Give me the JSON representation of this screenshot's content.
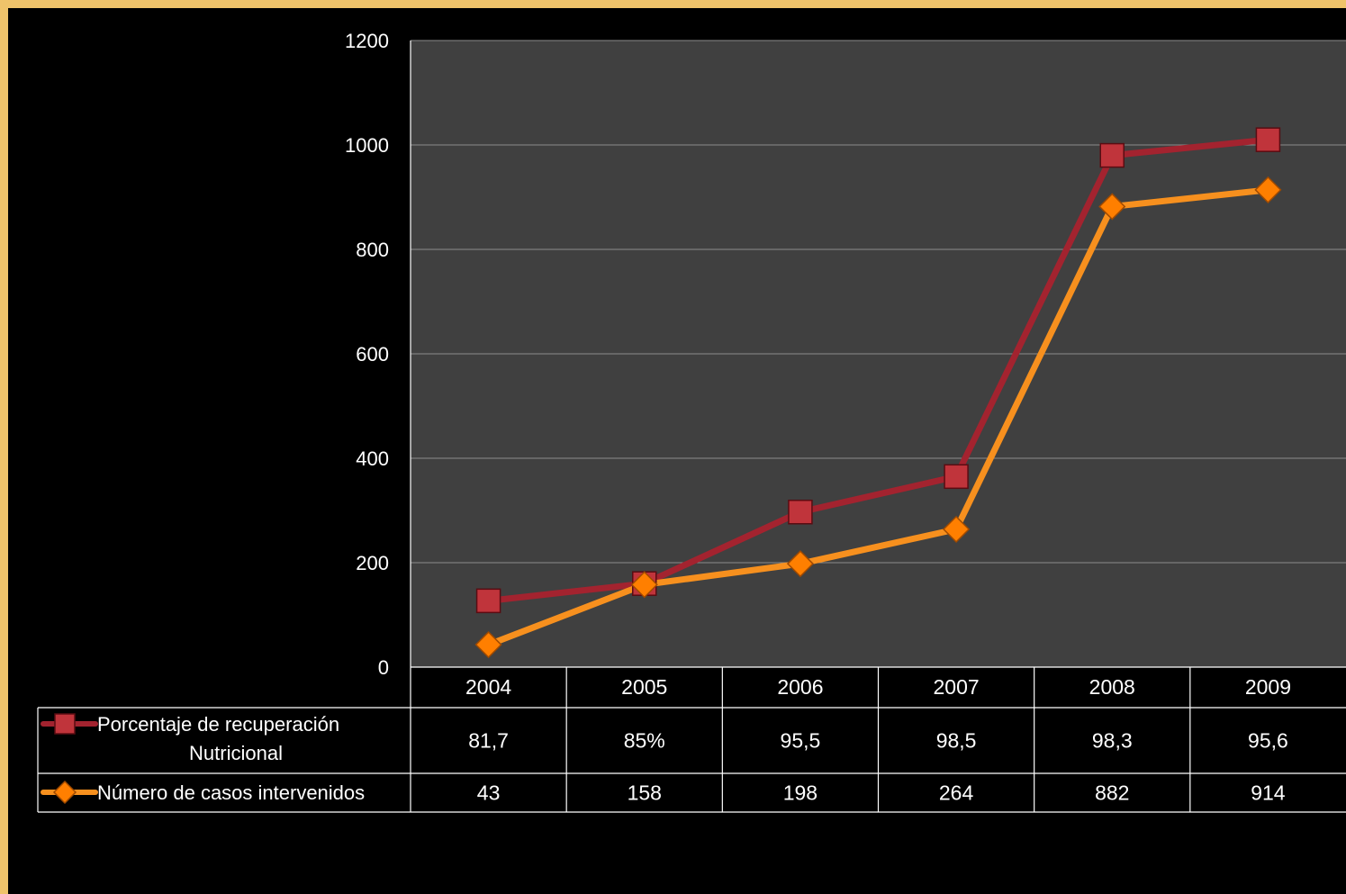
{
  "chart_data": {
    "type": "line",
    "title": "",
    "xlabel": "",
    "ylabel": "",
    "categories": [
      "2004",
      "2005",
      "2006",
      "2007",
      "2008",
      "2009"
    ],
    "ylim": [
      0,
      1200
    ],
    "yticks": [
      0,
      200,
      400,
      600,
      800,
      1000,
      1200
    ],
    "grid": true,
    "legend": "data-table-left",
    "plot_background": "#404040",
    "series": [
      {
        "name": "Porcentaje de recuperación Nutricional",
        "legend_lines": [
          "Porcentaje de recuperación",
          "Nutricional"
        ],
        "values": [
          127,
          160,
          297,
          365,
          980,
          1010
        ],
        "table_labels": [
          "81,7",
          "85%",
          "95,5",
          "98,5",
          "98,3",
          "95,6"
        ],
        "color": "#a3232f",
        "marker_color": "#c0343b",
        "marker": "square"
      },
      {
        "name": "Número de casos intervenidos",
        "legend_lines": [
          "Número de casos intervenidos"
        ],
        "values": [
          43,
          158,
          198,
          264,
          882,
          914
        ],
        "table_labels": [
          "43",
          "158",
          "198",
          "264",
          "882",
          "914"
        ],
        "color": "#f7901e",
        "marker_color": "#ff7f00",
        "marker": "diamond"
      }
    ]
  }
}
